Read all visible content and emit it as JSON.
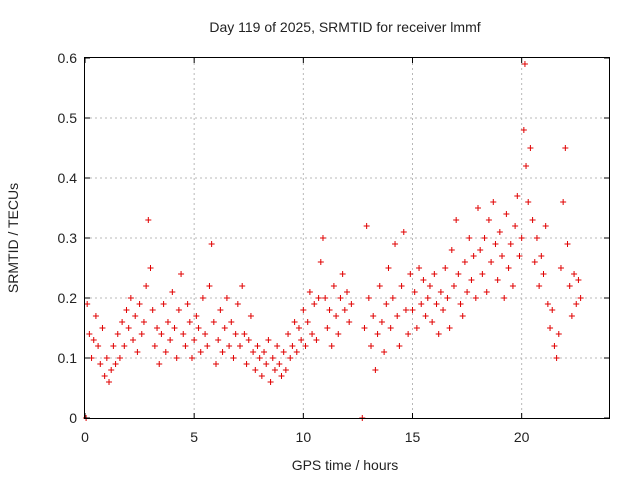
{
  "chart_data": {
    "type": "scatter",
    "title": "Day 119 of 2025, SRMTID for receiver lmmf",
    "xlabel": "GPS time / hours",
    "ylabel": "SRMTID / TECUs",
    "xlim": [
      0,
      24
    ],
    "ylim": [
      0,
      0.6
    ],
    "xticks": [
      0,
      5,
      10,
      15,
      20
    ],
    "yticks": [
      0,
      0.1,
      0.2,
      0.3,
      0.4,
      0.5,
      0.6
    ],
    "xtick_labels": [
      "0",
      "5",
      "10",
      "15",
      "20"
    ],
    "ytick_labels": [
      "0",
      "0.1",
      "0.2",
      "0.3",
      "0.4",
      "0.5",
      "0.6"
    ],
    "grid": true,
    "marker": "+",
    "marker_color": "#e00000",
    "series": [
      {
        "name": "SRMTID",
        "points": [
          [
            0.05,
            0.0
          ],
          [
            0.1,
            0.19
          ],
          [
            0.2,
            0.14
          ],
          [
            0.3,
            0.1
          ],
          [
            0.4,
            0.13
          ],
          [
            0.5,
            0.17
          ],
          [
            0.6,
            0.12
          ],
          [
            0.7,
            0.09
          ],
          [
            0.8,
            0.15
          ],
          [
            0.9,
            0.07
          ],
          [
            1.0,
            0.1
          ],
          [
            1.1,
            0.06
          ],
          [
            1.2,
            0.08
          ],
          [
            1.3,
            0.12
          ],
          [
            1.4,
            0.09
          ],
          [
            1.5,
            0.14
          ],
          [
            1.6,
            0.1
          ],
          [
            1.7,
            0.16
          ],
          [
            1.8,
            0.12
          ],
          [
            1.9,
            0.18
          ],
          [
            2.0,
            0.15
          ],
          [
            2.1,
            0.2
          ],
          [
            2.2,
            0.13
          ],
          [
            2.3,
            0.17
          ],
          [
            2.4,
            0.11
          ],
          [
            2.5,
            0.19
          ],
          [
            2.6,
            0.14
          ],
          [
            2.7,
            0.16
          ],
          [
            2.8,
            0.22
          ],
          [
            2.9,
            0.33
          ],
          [
            3.0,
            0.25
          ],
          [
            3.1,
            0.18
          ],
          [
            3.2,
            0.12
          ],
          [
            3.3,
            0.15
          ],
          [
            3.4,
            0.09
          ],
          [
            3.5,
            0.14
          ],
          [
            3.6,
            0.19
          ],
          [
            3.7,
            0.11
          ],
          [
            3.8,
            0.16
          ],
          [
            3.9,
            0.13
          ],
          [
            4.0,
            0.21
          ],
          [
            4.1,
            0.15
          ],
          [
            4.2,
            0.1
          ],
          [
            4.3,
            0.18
          ],
          [
            4.4,
            0.24
          ],
          [
            4.5,
            0.14
          ],
          [
            4.6,
            0.12
          ],
          [
            4.7,
            0.19
          ],
          [
            4.8,
            0.16
          ],
          [
            4.9,
            0.1
          ],
          [
            5.0,
            0.13
          ],
          [
            5.1,
            0.17
          ],
          [
            5.2,
            0.15
          ],
          [
            5.3,
            0.11
          ],
          [
            5.4,
            0.2
          ],
          [
            5.5,
            0.14
          ],
          [
            5.6,
            0.12
          ],
          [
            5.7,
            0.22
          ],
          [
            5.8,
            0.29
          ],
          [
            5.9,
            0.16
          ],
          [
            6.0,
            0.09
          ],
          [
            6.1,
            0.13
          ],
          [
            6.2,
            0.18
          ],
          [
            6.3,
            0.11
          ],
          [
            6.4,
            0.15
          ],
          [
            6.5,
            0.2
          ],
          [
            6.6,
            0.12
          ],
          [
            6.7,
            0.16
          ],
          [
            6.8,
            0.1
          ],
          [
            6.9,
            0.14
          ],
          [
            7.0,
            0.19
          ],
          [
            7.1,
            0.12
          ],
          [
            7.2,
            0.22
          ],
          [
            7.3,
            0.14
          ],
          [
            7.4,
            0.09
          ],
          [
            7.5,
            0.13
          ],
          [
            7.6,
            0.17
          ],
          [
            7.7,
            0.11
          ],
          [
            7.8,
            0.08
          ],
          [
            7.9,
            0.12
          ],
          [
            8.0,
            0.1
          ],
          [
            8.1,
            0.07
          ],
          [
            8.2,
            0.11
          ],
          [
            8.3,
            0.09
          ],
          [
            8.4,
            0.13
          ],
          [
            8.5,
            0.06
          ],
          [
            8.6,
            0.1
          ],
          [
            8.7,
            0.08
          ],
          [
            8.8,
            0.12
          ],
          [
            8.9,
            0.09
          ],
          [
            9.0,
            0.07
          ],
          [
            9.1,
            0.11
          ],
          [
            9.2,
            0.08
          ],
          [
            9.3,
            0.14
          ],
          [
            9.4,
            0.1
          ],
          [
            9.5,
            0.12
          ],
          [
            9.6,
            0.16
          ],
          [
            9.7,
            0.11
          ],
          [
            9.8,
            0.15
          ],
          [
            9.9,
            0.13
          ],
          [
            10.0,
            0.18
          ],
          [
            10.1,
            0.12
          ],
          [
            10.2,
            0.16
          ],
          [
            10.3,
            0.21
          ],
          [
            10.4,
            0.14
          ],
          [
            10.5,
            0.19
          ],
          [
            10.6,
            0.13
          ],
          [
            10.7,
            0.2
          ],
          [
            10.8,
            0.26
          ],
          [
            10.9,
            0.3
          ],
          [
            11.0,
            0.2
          ],
          [
            11.1,
            0.15
          ],
          [
            11.2,
            0.18
          ],
          [
            11.3,
            0.12
          ],
          [
            11.4,
            0.22
          ],
          [
            11.5,
            0.17
          ],
          [
            11.6,
            0.14
          ],
          [
            11.7,
            0.2
          ],
          [
            11.8,
            0.24
          ],
          [
            11.9,
            0.18
          ],
          [
            12.0,
            0.21
          ],
          [
            12.1,
            0.16
          ],
          [
            12.2,
            0.19
          ],
          [
            12.7,
            0.0
          ],
          [
            12.8,
            0.15
          ],
          [
            12.9,
            0.32
          ],
          [
            13.0,
            0.2
          ],
          [
            13.1,
            0.12
          ],
          [
            13.2,
            0.17
          ],
          [
            13.3,
            0.08
          ],
          [
            13.4,
            0.14
          ],
          [
            13.5,
            0.22
          ],
          [
            13.6,
            0.16
          ],
          [
            13.7,
            0.11
          ],
          [
            13.8,
            0.19
          ],
          [
            13.9,
            0.25
          ],
          [
            14.0,
            0.15
          ],
          [
            14.1,
            0.2
          ],
          [
            14.2,
            0.29
          ],
          [
            14.3,
            0.17
          ],
          [
            14.4,
            0.12
          ],
          [
            14.5,
            0.22
          ],
          [
            14.6,
            0.31
          ],
          [
            14.7,
            0.18
          ],
          [
            14.8,
            0.14
          ],
          [
            14.9,
            0.24
          ],
          [
            15.0,
            0.18
          ],
          [
            15.1,
            0.21
          ],
          [
            15.2,
            0.15
          ],
          [
            15.3,
            0.25
          ],
          [
            15.4,
            0.19
          ],
          [
            15.5,
            0.23
          ],
          [
            15.6,
            0.17
          ],
          [
            15.7,
            0.2
          ],
          [
            15.8,
            0.22
          ],
          [
            15.9,
            0.16
          ],
          [
            16.0,
            0.24
          ],
          [
            16.1,
            0.19
          ],
          [
            16.2,
            0.14
          ],
          [
            16.3,
            0.21
          ],
          [
            16.4,
            0.18
          ],
          [
            16.5,
            0.25
          ],
          [
            16.6,
            0.2
          ],
          [
            16.7,
            0.15
          ],
          [
            16.8,
            0.28
          ],
          [
            16.9,
            0.22
          ],
          [
            17.0,
            0.33
          ],
          [
            17.1,
            0.24
          ],
          [
            17.2,
            0.19
          ],
          [
            17.3,
            0.17
          ],
          [
            17.4,
            0.26
          ],
          [
            17.5,
            0.21
          ],
          [
            17.6,
            0.3
          ],
          [
            17.7,
            0.23
          ],
          [
            17.8,
            0.27
          ],
          [
            17.9,
            0.2
          ],
          [
            18.0,
            0.35
          ],
          [
            18.1,
            0.28
          ],
          [
            18.2,
            0.24
          ],
          [
            18.3,
            0.3
          ],
          [
            18.4,
            0.21
          ],
          [
            18.5,
            0.33
          ],
          [
            18.6,
            0.26
          ],
          [
            18.7,
            0.36
          ],
          [
            18.8,
            0.29
          ],
          [
            18.9,
            0.23
          ],
          [
            19.0,
            0.31
          ],
          [
            19.1,
            0.27
          ],
          [
            19.2,
            0.2
          ],
          [
            19.3,
            0.34
          ],
          [
            19.4,
            0.25
          ],
          [
            19.5,
            0.29
          ],
          [
            19.6,
            0.22
          ],
          [
            19.7,
            0.32
          ],
          [
            19.8,
            0.37
          ],
          [
            19.9,
            0.27
          ],
          [
            20.0,
            0.3
          ],
          [
            20.1,
            0.48
          ],
          [
            20.15,
            0.59
          ],
          [
            20.2,
            0.42
          ],
          [
            20.3,
            0.36
          ],
          [
            20.4,
            0.45
          ],
          [
            20.5,
            0.33
          ],
          [
            20.6,
            0.26
          ],
          [
            20.7,
            0.3
          ],
          [
            20.8,
            0.22
          ],
          [
            20.9,
            0.27
          ],
          [
            21.0,
            0.24
          ],
          [
            21.1,
            0.32
          ],
          [
            21.2,
            0.19
          ],
          [
            21.3,
            0.15
          ],
          [
            21.4,
            0.18
          ],
          [
            21.5,
            0.12
          ],
          [
            21.6,
            0.1
          ],
          [
            21.7,
            0.14
          ],
          [
            21.8,
            0.25
          ],
          [
            21.9,
            0.36
          ],
          [
            22.0,
            0.45
          ],
          [
            22.1,
            0.29
          ],
          [
            22.2,
            0.22
          ],
          [
            22.3,
            0.17
          ],
          [
            22.4,
            0.24
          ],
          [
            22.5,
            0.19
          ],
          [
            22.6,
            0.23
          ],
          [
            22.7,
            0.2
          ]
        ]
      }
    ]
  }
}
